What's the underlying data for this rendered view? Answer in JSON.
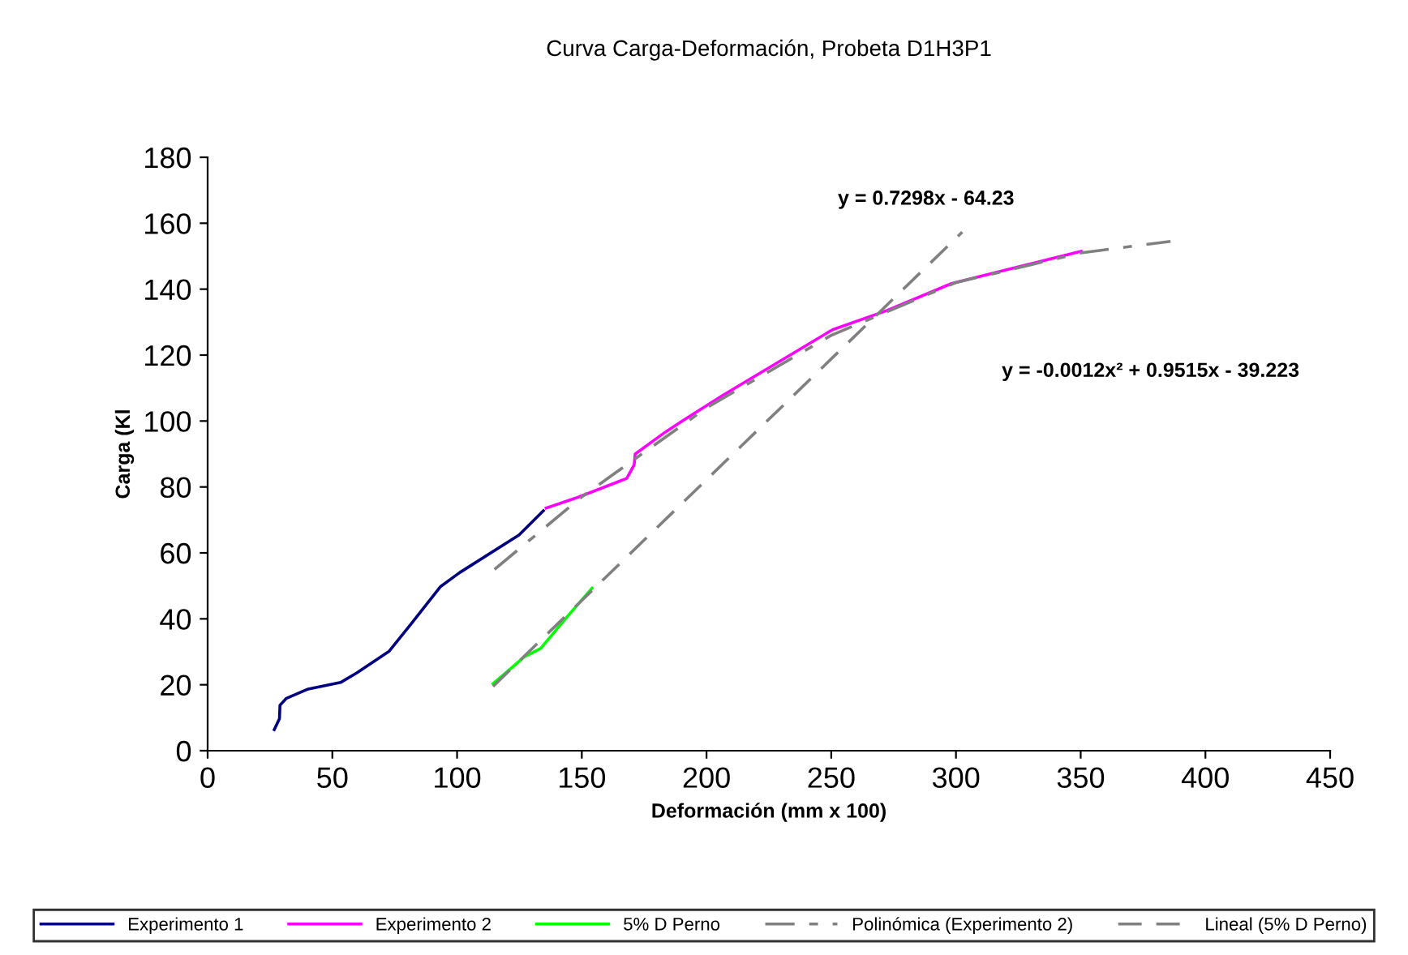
{
  "chart_data": {
    "type": "line",
    "title": "Curva Carga-Deformación, Probeta D1H3P1",
    "xlabel": "Deformación (mm x 100)",
    "ylabel": "Carga (Kl",
    "xlim": [
      0,
      450
    ],
    "xticks": [
      0,
      50,
      100,
      150,
      200,
      250,
      300,
      350,
      400,
      450
    ],
    "ylim": [
      0,
      180
    ],
    "yticks": [
      0,
      20,
      40,
      60,
      80,
      100,
      120,
      140,
      160,
      180
    ],
    "grid": false,
    "legend": "bottom",
    "marker": "none",
    "series": [
      {
        "name": "Experimento 1",
        "color": "#000080",
        "line_style": "solid",
        "x": [
          26.7,
          28.8,
          29,
          31.6,
          40.3,
          53.3,
          59.8,
          72.8,
          81.5,
          93.4,
          101,
          124.8,
          134.6
        ],
        "values": [
          6.4,
          9.7,
          13.8,
          15.9,
          18.7,
          20.7,
          23.6,
          30.2,
          38.4,
          49.8,
          54,
          65.4,
          72.8
        ]
      },
      {
        "name": "Experimento 2",
        "color": "#ff00ff",
        "line_style": "solid",
        "x": [
          135.7,
          148.6,
          168,
          171,
          171.4,
          183.4,
          189.8,
          207,
          228.9,
          250.5,
          272.2,
          298.2,
          324.2,
          350.2
        ],
        "values": [
          73.6,
          76.9,
          82.6,
          86.7,
          90,
          96.6,
          99.8,
          108,
          117.9,
          127.7,
          133.5,
          141.7,
          146.6,
          151.5
        ]
      },
      {
        "name": "5% D Perno",
        "color": "#00ff00",
        "line_style": "solid",
        "x": [
          114.4,
          127,
          133.5,
          144.3,
          154.1
        ],
        "values": [
          20.3,
          28.5,
          31,
          40.8,
          49.3
        ]
      },
      {
        "name": "Polinómica (Experimento 2)",
        "color": "#808080",
        "line_style": "dashdot",
        "x": [
          115,
          150,
          200,
          250,
          300,
          350,
          386
        ],
        "values": [
          55,
          77,
          104,
          126,
          142,
          151,
          154.5
        ]
      },
      {
        "name": "Lineal (5% D Perno)",
        "color": "#808080",
        "line_style": "dashed",
        "x": [
          114.4,
          302.5
        ],
        "values": [
          19.5,
          157.3
        ]
      }
    ],
    "annotations": [
      "y = 0.7298x - 64.23",
      "y = -0.0012x² + 0.9515x - 39.223"
    ]
  }
}
